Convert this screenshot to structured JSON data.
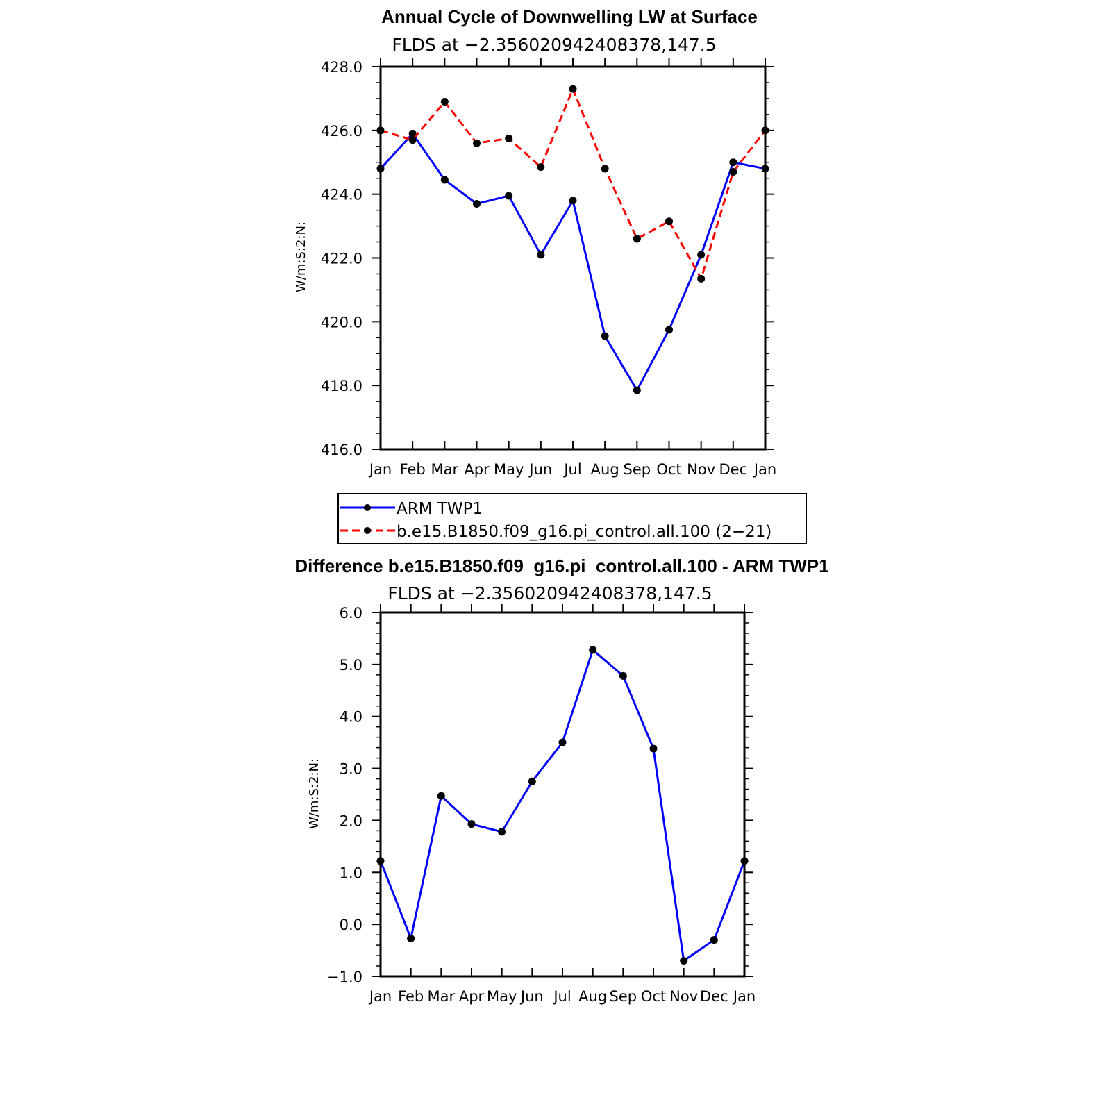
{
  "chart_data": [
    {
      "type": "line",
      "title": "Annual Cycle of Downwelling LW at Surface",
      "subtitle": "FLDS at −2.356020942408378,147.5",
      "xlabel": "",
      "ylabel": "W/m:S:2:N:",
      "categories": [
        "Jan",
        "Feb",
        "Mar",
        "Apr",
        "May",
        "Jun",
        "Jul",
        "Aug",
        "Sep",
        "Oct",
        "Nov",
        "Dec",
        "Jan"
      ],
      "ylim": [
        416.0,
        428.0
      ],
      "yticks": [
        "416.0",
        "418.0",
        "420.0",
        "422.0",
        "424.0",
        "426.0",
        "428.0"
      ],
      "grid": false,
      "series": [
        {
          "name": "ARM TWP1",
          "color": "#0000ff",
          "dash": "solid",
          "values": [
            424.8,
            425.9,
            424.45,
            423.7,
            423.95,
            422.1,
            423.8,
            419.55,
            417.85,
            419.75,
            422.1,
            425.0,
            424.8
          ]
        },
        {
          "name": "b.e15.B1850.f09_g16.pi_control.all.100 (2−21)",
          "color": "#ff0000",
          "dash": "dashed",
          "values": [
            426.0,
            425.7,
            426.9,
            425.6,
            425.75,
            424.85,
            427.3,
            424.8,
            422.6,
            423.15,
            421.35,
            424.7,
            426.0
          ]
        }
      ],
      "legend": {
        "position": "bottom",
        "entries": [
          "ARM TWP1",
          "b.e15.B1850.f09_g16.pi_control.all.100 (2−21)"
        ]
      }
    },
    {
      "type": "line",
      "title": "Difference b.e15.B1850.f09_g16.pi_control.all.100 - ARM TWP1",
      "subtitle": "FLDS at −2.356020942408378,147.5",
      "xlabel": "",
      "ylabel": "W/m:S:2:N:",
      "categories": [
        "Jan",
        "Feb",
        "Mar",
        "Apr",
        "May",
        "Jun",
        "Jul",
        "Aug",
        "Sep",
        "Oct",
        "Nov",
        "Dec",
        "Jan"
      ],
      "ylim": [
        -1.0,
        6.0
      ],
      "yticks": [
        "−1.0",
        "0.0",
        "1.0",
        "2.0",
        "3.0",
        "4.0",
        "5.0",
        "6.0"
      ],
      "grid": false,
      "series": [
        {
          "name": "Difference",
          "color": "#0000ff",
          "dash": "solid",
          "values": [
            1.22,
            -0.27,
            2.47,
            1.93,
            1.78,
            2.75,
            3.5,
            5.28,
            4.78,
            3.38,
            -0.7,
            -0.3,
            1.22
          ]
        }
      ]
    }
  ]
}
